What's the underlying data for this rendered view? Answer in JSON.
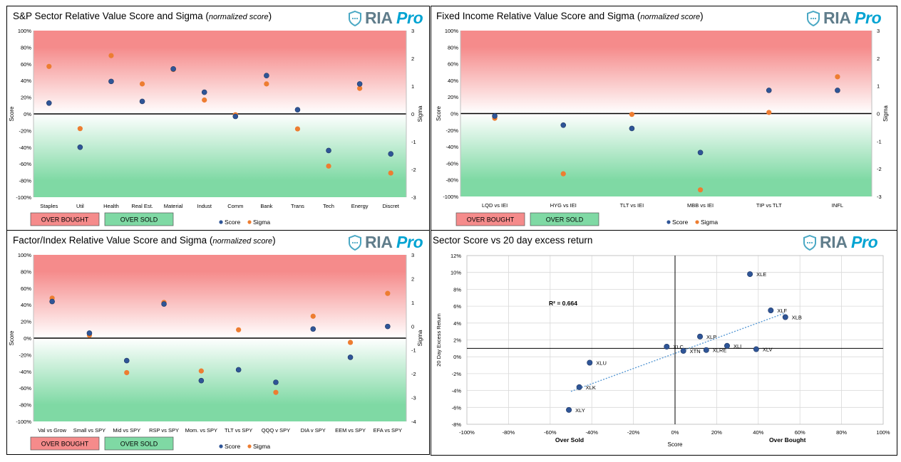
{
  "brand": {
    "name": "RIA",
    "suffix": "Pro"
  },
  "colors": {
    "overbought": "#f58b8b",
    "oversold": "#7fd9a4",
    "score": "#2f5597",
    "sigma": "#ed7d31",
    "trend": "#5b9bd5"
  },
  "legend": {
    "overbought": "OVER BOUGHT",
    "oversold": "OVER SOLD",
    "score": "Score",
    "sigma": "Sigma"
  },
  "panels": {
    "sp": {
      "title": "S&P Sector Relative Value Score and Sigma (",
      "subtitle": "normalized score",
      "close": ")"
    },
    "fi": {
      "title": "Fixed Income Relative Value Score and Sigma (",
      "subtitle": "normalized score",
      "close": ")"
    },
    "fx": {
      "title": "Factor/Index Relative Value Score and Sigma (",
      "subtitle": "normalized score",
      "close": ")"
    },
    "sc": {
      "title": "Sector Score vs 20 day excess return"
    }
  },
  "chart_data": [
    {
      "id": "sp",
      "type": "scatter",
      "title": "S&P Sector Relative Value Score and Sigma (normalized score)",
      "ylabel": "Score",
      "y2label": "Sigma",
      "ylim": [
        -100,
        100
      ],
      "y2lim": [
        -3,
        3
      ],
      "yticks": [
        "100%",
        "80%",
        "60%",
        "40%",
        "20%",
        "0%",
        "-20%",
        "-40%",
        "-60%",
        "-80%",
        "-100%"
      ],
      "y2ticks": [
        "3",
        "2",
        "1",
        "0",
        "-1",
        "-2",
        "-3"
      ],
      "categories": [
        "Staples",
        "Util",
        "Health",
        "Real Est.",
        "Material",
        "Indust",
        "Comm",
        "Bank",
        "Trans",
        "Tech",
        "Energy",
        "Discret"
      ],
      "series": [
        {
          "name": "Score",
          "values": [
            13,
            -40,
            39,
            15,
            54,
            26,
            -3,
            46,
            5,
            -44,
            36,
            -48
          ]
        },
        {
          "name": "Sigma",
          "values": [
            1.71,
            -0.53,
            2.1,
            1.08,
            1.6,
            0.5,
            -0.03,
            1.08,
            -0.54,
            -1.88,
            0.92,
            -2.13
          ]
        }
      ]
    },
    {
      "id": "fi",
      "type": "scatter",
      "title": "Fixed Income Relative Value Score and Sigma (normalized score)",
      "ylabel": "Score",
      "y2label": "Sigma",
      "ylim": [
        -100,
        100
      ],
      "y2lim": [
        -3,
        3
      ],
      "yticks": [
        "100%",
        "80%",
        "60%",
        "40%",
        "20%",
        "0%",
        "-20%",
        "-40%",
        "-60%",
        "-80%",
        "-100%"
      ],
      "y2ticks": [
        "3",
        "2",
        "1",
        "0",
        "-1",
        "-2",
        "-3"
      ],
      "categories": [
        "LQD vs IEI",
        "HYG vs IEI",
        "TLT vs IEI",
        "MBB vs IEI",
        "TIP vs TLT",
        "INFL"
      ],
      "series": [
        {
          "name": "Score",
          "values": [
            -3,
            -14,
            -18,
            -47,
            28,
            28
          ]
        },
        {
          "name": "Sigma",
          "values": [
            -0.17,
            -2.18,
            -0.03,
            -2.76,
            0.04,
            1.33
          ]
        }
      ]
    },
    {
      "id": "fx",
      "type": "scatter",
      "title": "Factor/Index Relative Value Score and Sigma (normalized score)",
      "ylabel": "Score",
      "y2label": "Sigma",
      "ylim": [
        -100,
        100
      ],
      "y2lim": [
        -4,
        3
      ],
      "yticks": [
        "100%",
        "80%",
        "60%",
        "40%",
        "20%",
        "0%",
        "-20%",
        "-40%",
        "-60%",
        "-80%",
        "-100%"
      ],
      "y2ticks": [
        "3",
        "2",
        "1",
        "0",
        "-1",
        "-2",
        "-3",
        "-4"
      ],
      "categories": [
        "Val vs Grow",
        "Small vs SPY",
        "Mid vs SPY",
        "RSP vs SPY",
        "Mom. vs SPY",
        "TLT vs SPY",
        "QQQ v SPY",
        "DIA v SPY",
        "EEM vs SPY",
        "EFA vs SPY"
      ],
      "series": [
        {
          "name": "Score",
          "values": [
            44,
            6,
            -27,
            41,
            -51,
            -38,
            -53,
            11,
            -23,
            14
          ]
        },
        {
          "name": "Sigma",
          "values": [
            1.18,
            -0.38,
            -1.95,
            1.0,
            -1.88,
            -0.15,
            -2.78,
            0.42,
            -0.68,
            1.38
          ]
        }
      ]
    },
    {
      "id": "sc",
      "type": "scatter",
      "title": "Sector Score vs 20 day excess return",
      "xlabel": "Score",
      "ylabel": "20 Day Excess Return",
      "xlim": [
        -100,
        100
      ],
      "ylim": [
        -8,
        12
      ],
      "xticks": [
        "-100%",
        "-80%",
        "-60%",
        "-40%",
        "-20%",
        "0%",
        "20%",
        "40%",
        "60%",
        "80%",
        "100%"
      ],
      "yticks": [
        "12%",
        "10%",
        "8%",
        "6%",
        "4%",
        "2%",
        "0%",
        "-2%",
        "-4%",
        "-6%",
        "-8%"
      ],
      "annotation": "R² = 0.664",
      "xlabel_left": "Over Sold",
      "xlabel_right": "Over Bought",
      "hline_y": 1,
      "points": [
        {
          "label": "XLE",
          "x": 36,
          "y": 9.8
        },
        {
          "label": "XLF",
          "x": 46,
          "y": 5.5
        },
        {
          "label": "XLB",
          "x": 53,
          "y": 4.7
        },
        {
          "label": "XLP",
          "x": 12,
          "y": 2.4
        },
        {
          "label": "XLC",
          "x": -4,
          "y": 1.2
        },
        {
          "label": "XTN",
          "x": 4,
          "y": 0.7
        },
        {
          "label": "XLRE",
          "x": 15,
          "y": 0.8
        },
        {
          "label": "XLI",
          "x": 25,
          "y": 1.3
        },
        {
          "label": "XLV",
          "x": 39,
          "y": 0.9
        },
        {
          "label": "XLU",
          "x": -41,
          "y": -0.7
        },
        {
          "label": "XLK",
          "x": -46,
          "y": -3.6
        },
        {
          "label": "XLY",
          "x": -51,
          "y": -6.3
        }
      ],
      "trendline": {
        "x1": -50,
        "y1": -4.1,
        "x2": 53,
        "y2": 5.2
      }
    }
  ]
}
